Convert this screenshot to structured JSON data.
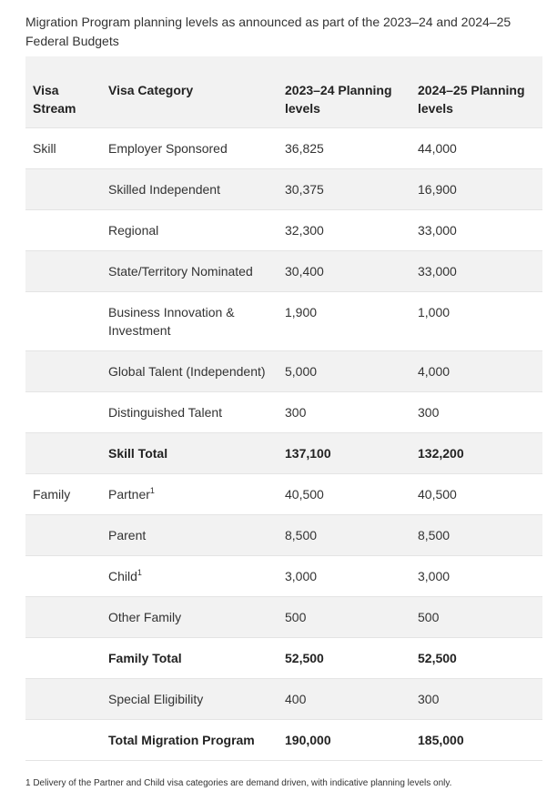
{
  "caption": "Migration Program planning levels as announced as part of the 2023–24 and 2024–25 Federal Budgets",
  "headers": {
    "stream": "Visa Stream",
    "category": "Visa Category",
    "y2023": "2023–24 Planning levels",
    "y2024": "2024–25 Planning levels"
  },
  "rows": [
    {
      "stream": "Skill",
      "category": "Employer Sponsored",
      "y2023": "36,825",
      "y2024": "44,000"
    },
    {
      "stream": "",
      "category": "Skilled Independent",
      "y2023": "30,375",
      "y2024": "16,900"
    },
    {
      "stream": "",
      "category": "Regional",
      "y2023": "32,300",
      "y2024": "33,000"
    },
    {
      "stream": "",
      "category": "State/Territory Nominated",
      "y2023": "30,400",
      "y2024": "33,000"
    },
    {
      "stream": "",
      "category": "Business Innovation & Investment",
      "y2023": "1,900",
      "y2024": "1,000"
    },
    {
      "stream": "",
      "category": "Global Talent (Independent)",
      "y2023": "5,000",
      "y2024": "4,000"
    },
    {
      "stream": "",
      "category": "Distinguished Talent",
      "y2023": "300",
      "y2024": "300"
    },
    {
      "stream": "",
      "category": "Skill Total",
      "y2023": "137,100",
      "y2024": "132,200"
    },
    {
      "stream": "Family",
      "category": "Partner",
      "sup": "1",
      "y2023": "40,500",
      "y2024": "40,500"
    },
    {
      "stream": "",
      "category": "Parent",
      "y2023": "8,500",
      "y2024": "8,500"
    },
    {
      "stream": "",
      "category": "Child",
      "sup": "1",
      "y2023": "3,000",
      "y2024": "3,000"
    },
    {
      "stream": "",
      "category": "Other Family",
      "y2023": "500",
      "y2024": "500"
    },
    {
      "stream": "",
      "category": "Family Total",
      "y2023": "52,500",
      "y2024": "52,500"
    },
    {
      "stream": "",
      "category": "Special Eligibility",
      "y2023": "400",
      "y2024": "300"
    },
    {
      "stream": "",
      "category": "Total Migration Program",
      "y2023": "190,000",
      "y2024": "185,000"
    }
  ],
  "footnote": "1 Delivery of the Partner and Child visa categories are demand driven, with indicative planning levels only."
}
